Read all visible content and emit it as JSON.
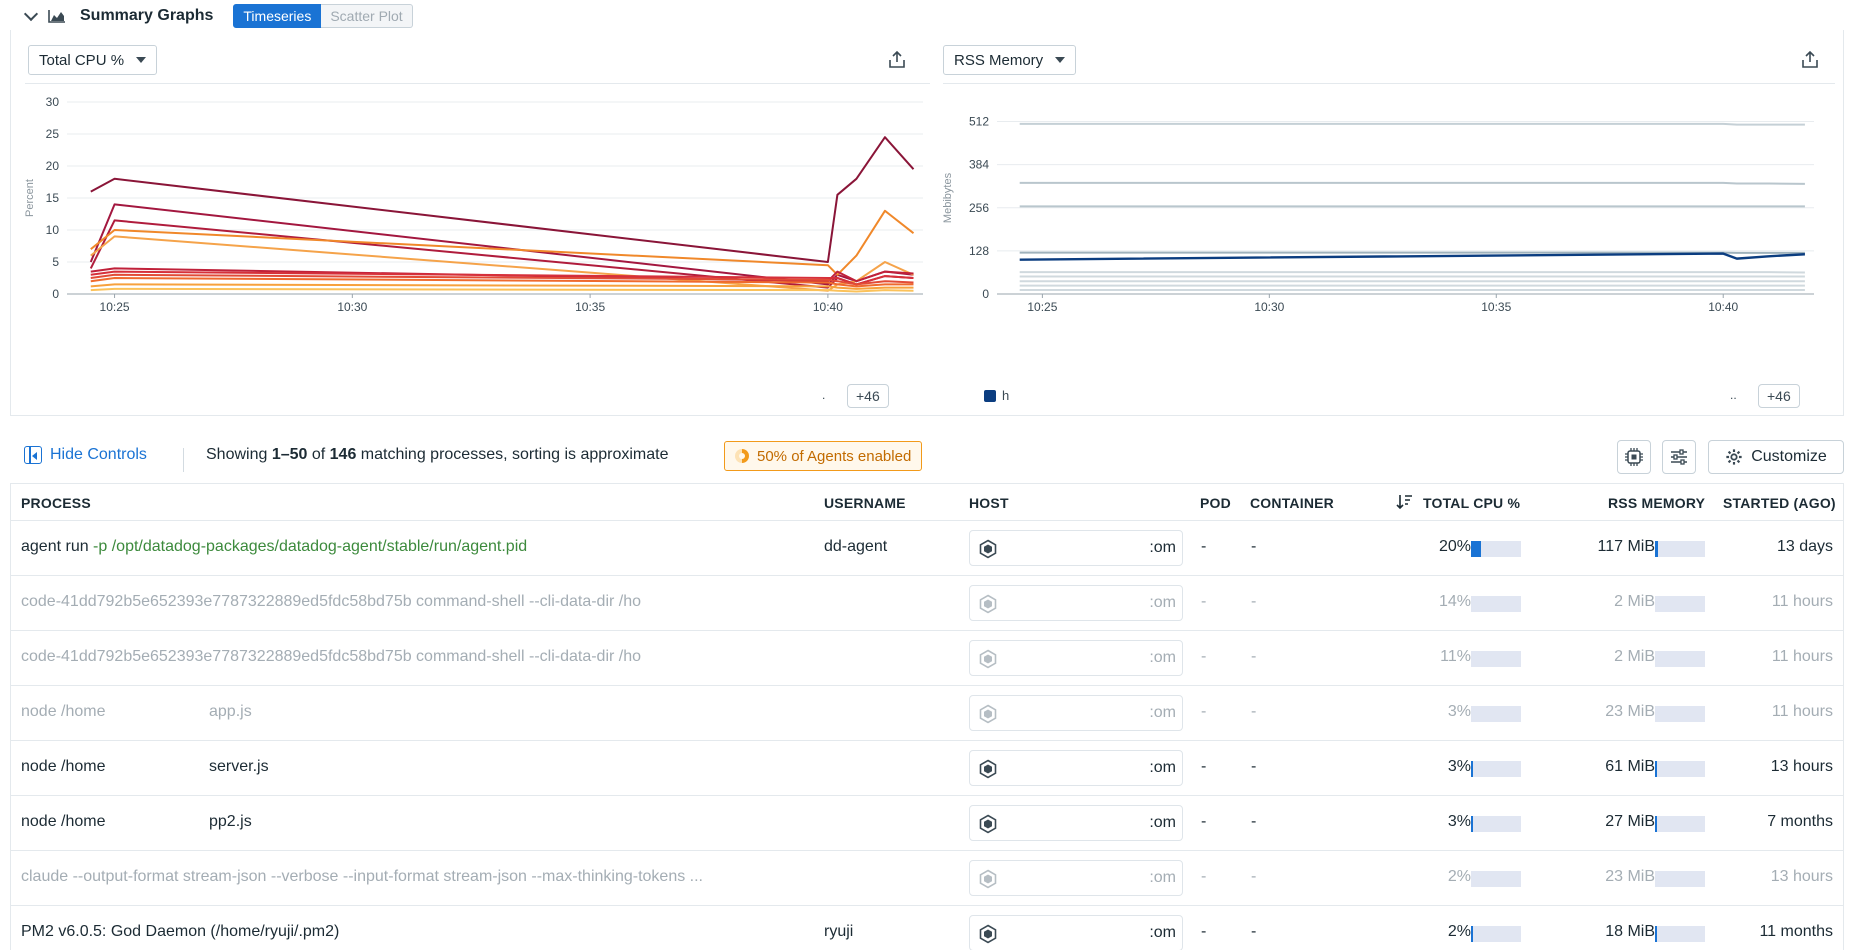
{
  "summary": {
    "title": "Summary Graphs",
    "tabs": [
      "Timeseries",
      "Scatter Plot"
    ],
    "active_tab": "Timeseries"
  },
  "cpu_graph": {
    "metric_label": "Total CPU %",
    "more_badge": "+46",
    "dot": ".",
    "chart_data": {
      "type": "line",
      "ylabel": "Percent",
      "ylim": [
        0,
        30
      ],
      "y_ticks": [
        "30",
        "25",
        "20",
        "15",
        "10",
        "5",
        "0"
      ],
      "x_ticks": [
        "10:25",
        "10:30",
        "10:35",
        "10:40"
      ],
      "x_minutes": [
        24.5,
        25,
        40,
        40.2,
        40.6,
        41.2,
        41.8
      ],
      "series": [
        {
          "color": "#8a1538",
          "values": [
            16,
            18,
            5,
            15.5,
            18,
            24.5,
            19.5
          ]
        },
        {
          "color": "#a3173f",
          "values": [
            5,
            14,
            1.5,
            3,
            2,
            3.5,
            3
          ]
        },
        {
          "color": "#b01c3c",
          "values": [
            4,
            11.5,
            1,
            2.5,
            1.5,
            2.8,
            2.5
          ]
        },
        {
          "color": "#f0882a",
          "values": [
            7,
            10,
            4.5,
            3,
            6,
            13,
            9.5
          ]
        },
        {
          "color": "#f5a34a",
          "values": [
            6,
            9,
            0.5,
            1.5,
            2,
            5,
            3
          ]
        },
        {
          "color": "#c0213a",
          "values": [
            3.5,
            4,
            2,
            3.5,
            2,
            3.5,
            3.2
          ]
        },
        {
          "color": "#d6303a",
          "values": [
            3,
            3.5,
            2.5,
            2.5,
            1.5,
            2.8,
            2.5
          ]
        },
        {
          "color": "#e24b36",
          "values": [
            2.5,
            3,
            2.2,
            2,
            1.5,
            2,
            1.8
          ]
        },
        {
          "color": "#ef6a2e",
          "values": [
            2,
            2.5,
            1.8,
            1.5,
            1.2,
            1.5,
            1.5
          ]
        },
        {
          "color": "#f7a13c",
          "values": [
            1.2,
            1.5,
            1.2,
            1,
            0.8,
            1,
            1
          ]
        },
        {
          "color": "#fbc25a",
          "values": [
            0.6,
            0.8,
            0.6,
            0.5,
            0.4,
            0.6,
            0.5
          ]
        }
      ]
    }
  },
  "rss_graph": {
    "metric_label": "RSS Memory",
    "more_badge": "+46",
    "dot": "..",
    "legend_label": "h",
    "chart_data": {
      "type": "line",
      "ylabel": "Mebibytes",
      "ylim": [
        0,
        570
      ],
      "y_ticks": [
        "512",
        "384",
        "256",
        "128",
        "0"
      ],
      "y_tick_values": [
        512,
        384,
        256,
        128,
        0
      ],
      "x_ticks": [
        "10:25",
        "10:30",
        "10:35",
        "10:40"
      ],
      "x_minutes": [
        24.5,
        40,
        40.3,
        41,
        41.8
      ],
      "series": [
        {
          "color": "#c5d0d6",
          "values": [
            505,
            505,
            503,
            503,
            503
          ]
        },
        {
          "color": "#b9c6cd",
          "values": [
            330,
            330,
            328,
            328,
            327
          ]
        },
        {
          "color": "#b9c6cd",
          "values": [
            260,
            260,
            260,
            260,
            260
          ]
        },
        {
          "color": "#9fb2bc",
          "values": [
            123,
            123,
            122,
            122,
            122
          ]
        },
        {
          "color": "#0b3d80",
          "values": [
            102,
            120,
            105,
            112,
            118
          ]
        },
        {
          "color": "#d0d9de",
          "values": [
            65,
            65,
            65,
            65,
            64
          ]
        },
        {
          "color": "#d0d9de",
          "values": [
            52,
            52,
            52,
            52,
            52
          ]
        },
        {
          "color": "#d0d9de",
          "values": [
            38,
            38,
            38,
            38,
            38
          ]
        },
        {
          "color": "#d0d9de",
          "values": [
            25,
            25,
            25,
            25,
            25
          ]
        },
        {
          "color": "#d0d9de",
          "values": [
            12,
            12,
            12,
            12,
            12
          ]
        }
      ]
    }
  },
  "controls": {
    "hide_controls": "Hide Controls",
    "showing_prefix": "Showing ",
    "range": "1–50",
    "of": " of ",
    "total": "146",
    "suffix": " matching processes, sorting is approximate",
    "agents_pill": "50% of Agents enabled",
    "customize": "Customize"
  },
  "table": {
    "headers": {
      "process": "PROCESS",
      "username": "USERNAME",
      "host": "HOST",
      "pod": "POD",
      "container": "CONTAINER",
      "cpu": "TOTAL CPU %",
      "rss": "RSS MEMORY",
      "started": "STARTED (AGO)"
    },
    "rows": [
      {
        "cmd": "agent run",
        "flag": " -p",
        "path": " /opt/datadog-packages/datadog-agent/stable/run/agent.pid",
        "user": "dd-agent",
        "host_suffix": ":om",
        "pod": "-",
        "container": "-",
        "cpu": "20%",
        "cpu_frac": 0.2,
        "rss": "117 MiB",
        "rss_frac": 0.06,
        "started": "13 days",
        "dim": false
      },
      {
        "cmd": "code-41dd792b5e652393e7787322889ed5fdc58bd75b command-shell --cli-data-dir /ho",
        "flag": "",
        "path": "",
        "user": "",
        "host_suffix": ":om",
        "pod": "-",
        "container": "-",
        "cpu": "14%",
        "cpu_frac": 0.0,
        "rss": "2 MiB",
        "rss_frac": 0.0,
        "started": "11 hours",
        "dim": true
      },
      {
        "cmd": "code-41dd792b5e652393e7787322889ed5fdc58bd75b command-shell --cli-data-dir /ho",
        "flag": "",
        "path": "",
        "user": "",
        "host_suffix": ":om",
        "pod": "-",
        "container": "-",
        "cpu": "11%",
        "cpu_frac": 0.0,
        "rss": "2 MiB",
        "rss_frac": 0.0,
        "started": "11 hours",
        "dim": true
      },
      {
        "cmd": "node /home",
        "flag": "",
        "path": "",
        "tail": "app.js",
        "user": "",
        "host_suffix": ":om",
        "pod": "-",
        "container": "-",
        "cpu": "3%",
        "cpu_frac": 0.0,
        "rss": "23 MiB",
        "rss_frac": 0.0,
        "started": "11 hours",
        "dim": true
      },
      {
        "cmd": "node /home",
        "flag": "",
        "path": "",
        "tail": "server.js",
        "user": "",
        "host_suffix": ":om",
        "pod": "-",
        "container": "-",
        "cpu": "3%",
        "cpu_frac": 0.03,
        "rss": "61 MiB",
        "rss_frac": 0.03,
        "started": "13 hours",
        "dim": false
      },
      {
        "cmd": "node /home",
        "flag": "",
        "path": "",
        "tail": "pp2.js",
        "user": "",
        "host_suffix": ":om",
        "pod": "-",
        "container": "-",
        "cpu": "3%",
        "cpu_frac": 0.03,
        "rss": "27 MiB",
        "rss_frac": 0.01,
        "started": "7 months",
        "dim": false
      },
      {
        "cmd": "claude --output-format stream-json --verbose --input-format stream-json --max-thinking-tokens ...",
        "flag": "",
        "path": "",
        "user": "",
        "host_suffix": ":om",
        "pod": "-",
        "container": "-",
        "cpu": "2%",
        "cpu_frac": 0.0,
        "rss": "23 MiB",
        "rss_frac": 0.0,
        "started": "13 hours",
        "dim": true
      },
      {
        "cmd": "PM2 v6.0.5: God Daemon (/home/ryuji/.pm2)",
        "flag": "",
        "path": "",
        "user": "ryuji",
        "host_suffix": ":om",
        "pod": "-",
        "container": "-",
        "cpu": "2%",
        "cpu_frac": 0.02,
        "rss": "18 MiB",
        "rss_frac": 0.01,
        "started": "11 months",
        "dim": false
      }
    ]
  }
}
